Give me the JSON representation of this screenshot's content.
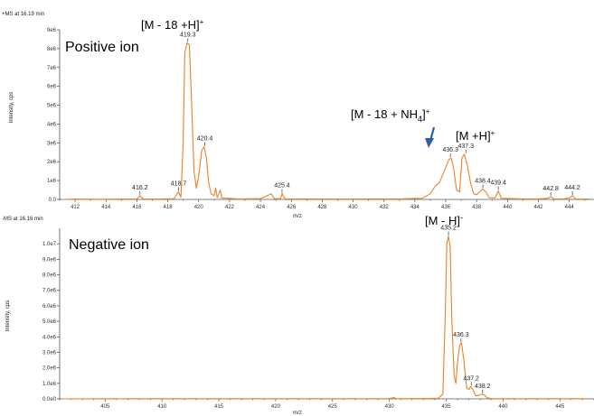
{
  "chart_data": [
    {
      "type": "line",
      "header": "+MS at 16.19 min",
      "title": "Positive ion",
      "xlabel": "m/z",
      "ylabel": "Intensity, cps",
      "xlim": [
        411,
        445.6
      ],
      "ylim": [
        0,
        9000000
      ],
      "xticks": [
        412,
        414,
        416,
        418,
        420,
        422,
        424,
        426,
        428,
        430,
        432,
        434,
        436,
        438,
        440,
        442,
        444
      ],
      "yticks": [
        0,
        1000000,
        2000000,
        3000000,
        4000000,
        5000000,
        6000000,
        7000000,
        8000000,
        9000000
      ],
      "ytick_labels": [
        "0.0",
        "1e6",
        "2e6",
        "3e6",
        "4e6",
        "5e6",
        "6e6",
        "7e6",
        "8e6",
        "9e6"
      ],
      "peaks": [
        {
          "x": 419.3,
          "y": 8300000,
          "label": "419.3"
        },
        {
          "x": 420.4,
          "y": 2800000,
          "label": "420.4"
        },
        {
          "x": 418.7,
          "y": 400000,
          "label": "418.7"
        },
        {
          "x": 416.2,
          "y": 200000,
          "label": "416.2"
        },
        {
          "x": 425.4,
          "y": 300000,
          "label": "425.4"
        },
        {
          "x": 436.3,
          "y": 2200000,
          "label": "436.3"
        },
        {
          "x": 437.3,
          "y": 2400000,
          "label": "437.3"
        },
        {
          "x": 438.4,
          "y": 550000,
          "label": "438.4"
        },
        {
          "x": 439.4,
          "y": 450000,
          "label": "439.4"
        },
        {
          "x": 442.8,
          "y": 150000,
          "label": "442.8"
        },
        {
          "x": 444.2,
          "y": 200000,
          "label": "444.2"
        }
      ],
      "trace": [
        [
          411.2,
          0
        ],
        [
          412.0,
          20000
        ],
        [
          413.5,
          10000
        ],
        [
          415.0,
          20000
        ],
        [
          416.0,
          30000
        ],
        [
          416.2,
          200000
        ],
        [
          416.4,
          20000
        ],
        [
          417.5,
          20000
        ],
        [
          418.4,
          40000
        ],
        [
          418.7,
          400000
        ],
        [
          418.85,
          120000
        ],
        [
          419.0,
          3000000
        ],
        [
          419.1,
          7800000
        ],
        [
          419.25,
          8300000
        ],
        [
          419.4,
          8200000
        ],
        [
          419.55,
          5000000
        ],
        [
          419.7,
          1500000
        ],
        [
          419.85,
          600000
        ],
        [
          420.0,
          1200000
        ],
        [
          420.2,
          2600000
        ],
        [
          420.35,
          2800000
        ],
        [
          420.5,
          2200000
        ],
        [
          420.65,
          900000
        ],
        [
          420.8,
          300000
        ],
        [
          421.0,
          200000
        ],
        [
          421.1,
          600000
        ],
        [
          421.2,
          100000
        ],
        [
          421.4,
          500000
        ],
        [
          421.5,
          80000
        ],
        [
          422.5,
          30000
        ],
        [
          424.0,
          40000
        ],
        [
          424.7,
          300000
        ],
        [
          424.9,
          40000
        ],
        [
          425.3,
          40000
        ],
        [
          425.4,
          300000
        ],
        [
          425.6,
          30000
        ],
        [
          427.0,
          30000
        ],
        [
          429.0,
          20000
        ],
        [
          431.0,
          30000
        ],
        [
          433.0,
          30000
        ],
        [
          434.5,
          60000
        ],
        [
          435.0,
          300000
        ],
        [
          435.3,
          700000
        ],
        [
          435.6,
          900000
        ],
        [
          435.9,
          1500000
        ],
        [
          436.2,
          2100000
        ],
        [
          436.35,
          2200000
        ],
        [
          436.5,
          1700000
        ],
        [
          436.7,
          500000
        ],
        [
          436.9,
          400000
        ],
        [
          437.05,
          2200000
        ],
        [
          437.2,
          2400000
        ],
        [
          437.4,
          1800000
        ],
        [
          437.6,
          900000
        ],
        [
          437.8,
          300000
        ],
        [
          438.0,
          250000
        ],
        [
          438.2,
          400000
        ],
        [
          438.4,
          550000
        ],
        [
          438.6,
          400000
        ],
        [
          438.8,
          100000
        ],
        [
          439.2,
          80000
        ],
        [
          439.4,
          450000
        ],
        [
          439.6,
          60000
        ],
        [
          440.5,
          40000
        ],
        [
          441.0,
          30000
        ],
        [
          442.0,
          30000
        ],
        [
          442.6,
          60000
        ],
        [
          442.8,
          150000
        ],
        [
          443.0,
          30000
        ],
        [
          443.6,
          30000
        ],
        [
          444.0,
          80000
        ],
        [
          444.2,
          200000
        ],
        [
          444.4,
          30000
        ],
        [
          445.3,
          20000
        ]
      ],
      "annotations": [
        {
          "id": "m18h",
          "text": "[M - 18 +H]",
          "sup": "+"
        },
        {
          "id": "m18nh4",
          "text": "[M - 18 + NH",
          "sub": "4",
          "after_sub": "]",
          "sup": "+"
        },
        {
          "id": "mh",
          "text": "[M +H]",
          "sup": "+"
        }
      ]
    },
    {
      "type": "line",
      "header": "-MS at 16.16 min",
      "title": "Negative ion",
      "xlabel": "m/z",
      "ylabel": "Intensity, cps",
      "xlim": [
        401,
        448
      ],
      "ylim": [
        0,
        11000000
      ],
      "xticks": [
        405,
        410,
        415,
        420,
        425,
        430,
        435,
        440,
        445
      ],
      "yticks": [
        0,
        1000000,
        2000000,
        3000000,
        4000000,
        5000000,
        6000000,
        7000000,
        8000000,
        9000000,
        10000000
      ],
      "ytick_labels": [
        "0.0e0",
        "1.0e6",
        "2.0e6",
        "3.0e6",
        "4.0e6",
        "5.0e6",
        "6.0e6",
        "7.0e6",
        "8.0e6",
        "9.0e6",
        "1.0e7"
      ],
      "peaks": [
        {
          "x": 435.2,
          "y": 10500000,
          "label": "435.2"
        },
        {
          "x": 436.3,
          "y": 3600000,
          "label": "436.3"
        },
        {
          "x": 437.2,
          "y": 800000,
          "label": "437.2"
        },
        {
          "x": 438.2,
          "y": 300000,
          "label": "438.2"
        }
      ],
      "trace": [
        [
          401.2,
          0
        ],
        [
          408.0,
          10000
        ],
        [
          420.0,
          10000
        ],
        [
          430.0,
          20000
        ],
        [
          430.4,
          90000
        ],
        [
          430.6,
          10000
        ],
        [
          433.0,
          20000
        ],
        [
          434.3,
          40000
        ],
        [
          434.7,
          300000
        ],
        [
          434.9,
          5000000
        ],
        [
          435.05,
          10000000
        ],
        [
          435.2,
          10500000
        ],
        [
          435.35,
          9800000
        ],
        [
          435.5,
          5000000
        ],
        [
          435.7,
          1500000
        ],
        [
          435.85,
          1000000
        ],
        [
          436.0,
          2400000
        ],
        [
          436.2,
          3500000
        ],
        [
          436.35,
          3600000
        ],
        [
          436.55,
          2500000
        ],
        [
          436.8,
          700000
        ],
        [
          437.0,
          600000
        ],
        [
          437.15,
          800000
        ],
        [
          437.35,
          600000
        ],
        [
          437.6,
          200000
        ],
        [
          437.9,
          220000
        ],
        [
          438.1,
          300000
        ],
        [
          438.35,
          250000
        ],
        [
          438.6,
          70000
        ],
        [
          439.0,
          20000
        ],
        [
          447.5,
          10000
        ]
      ],
      "annotations": [
        {
          "id": "mminush",
          "text": "[M - H]",
          "sup": "-"
        }
      ]
    }
  ]
}
